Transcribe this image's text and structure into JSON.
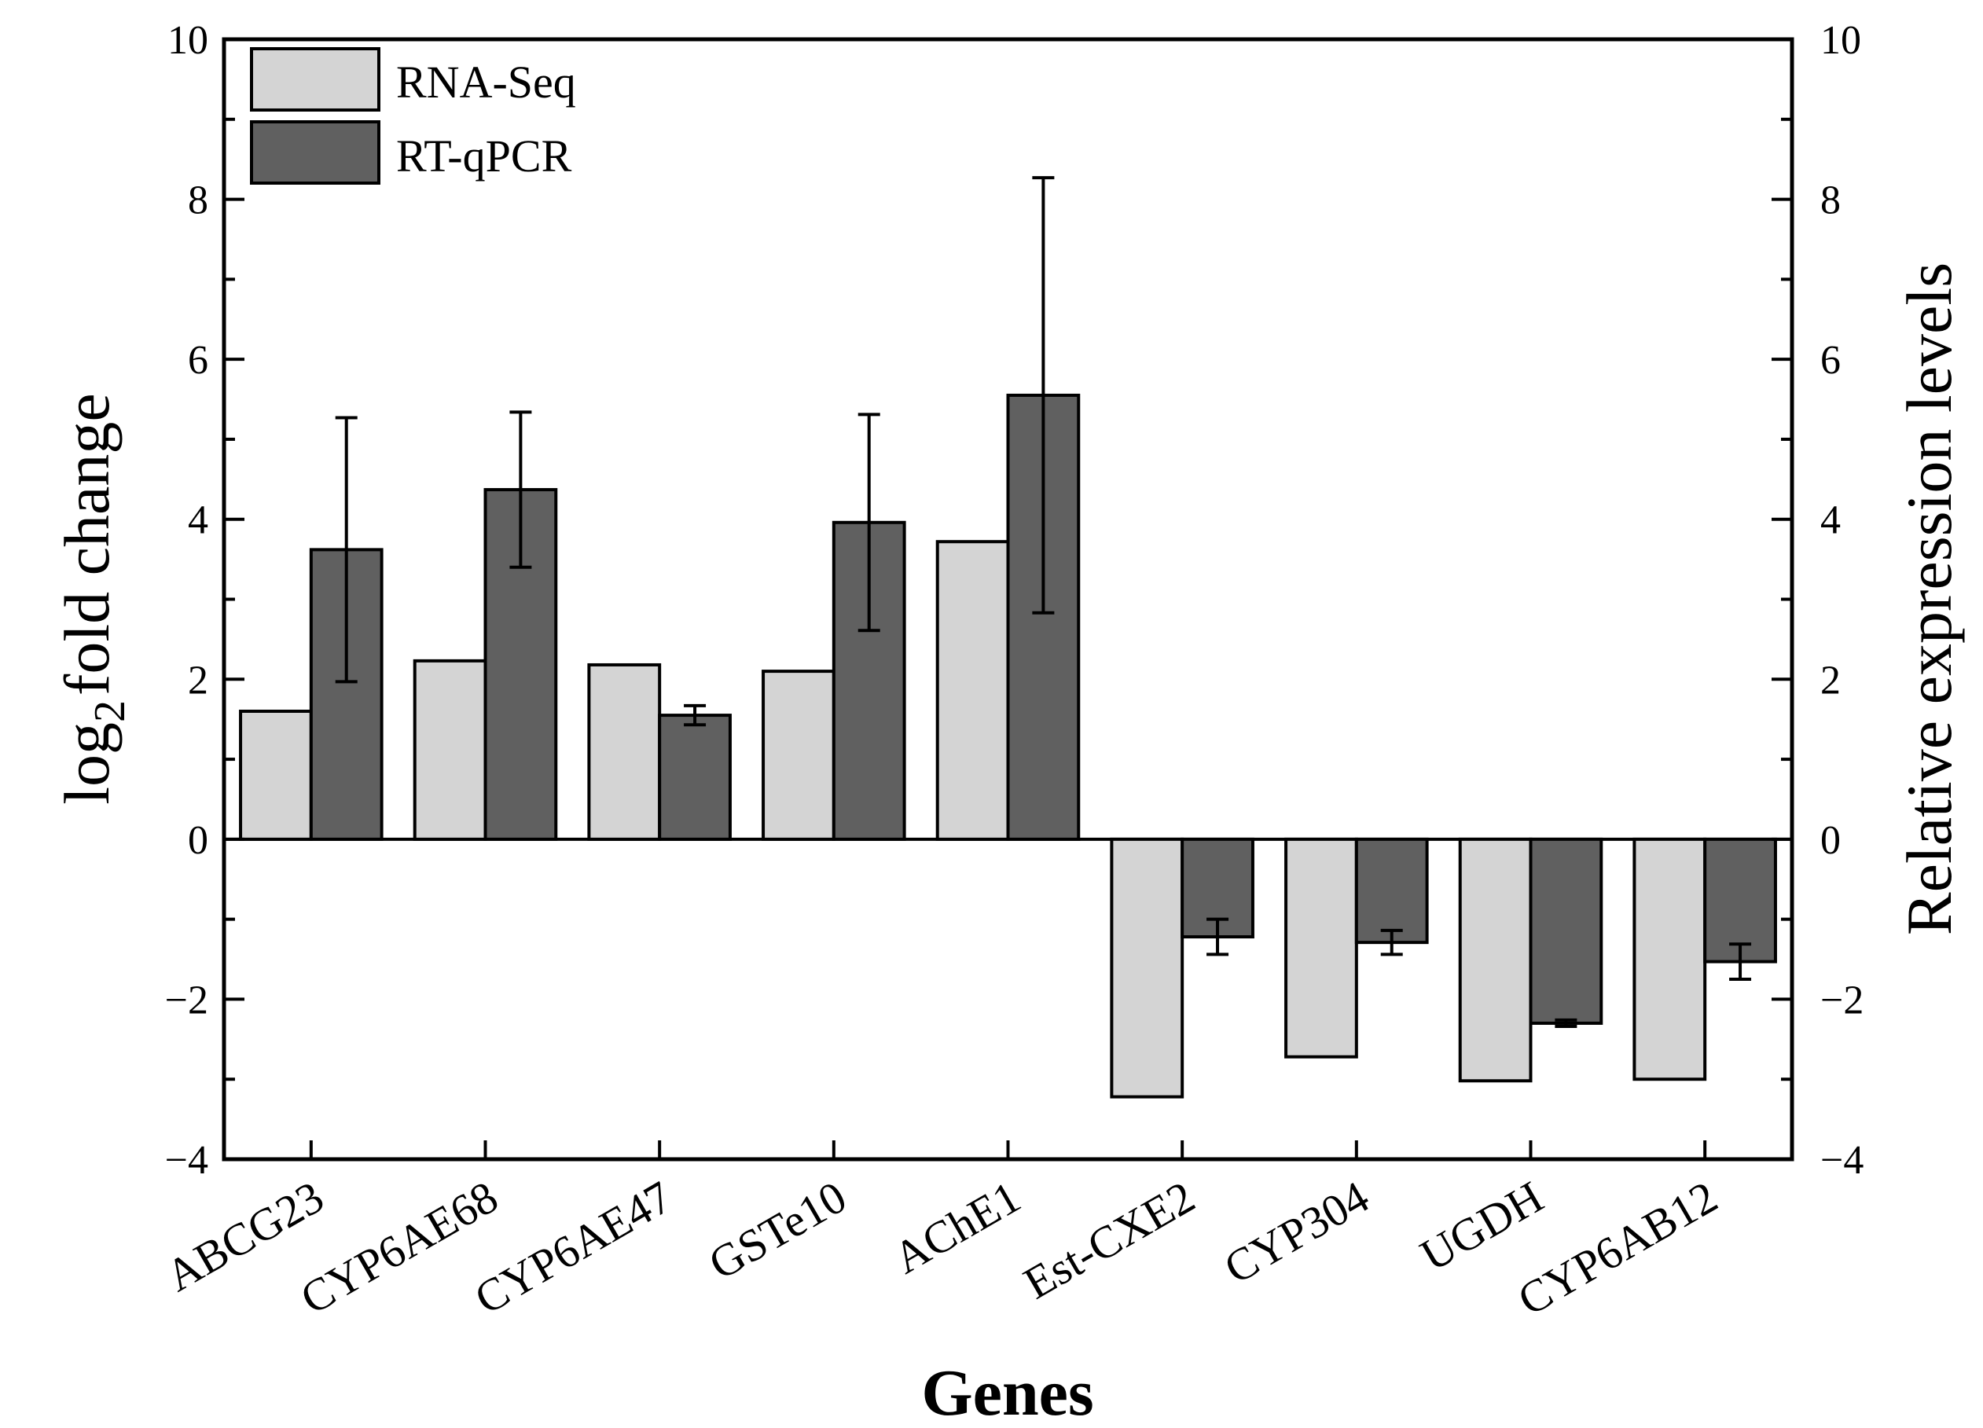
{
  "chart_data": {
    "type": "bar",
    "title": "",
    "xlabel": "Genes",
    "ylabel": "log2 fold change",
    "ylabel_parts": {
      "base": "log",
      "subscript": "2",
      "rest": "fold change"
    },
    "y2label": "Relative expression levels",
    "ylim": [
      -4,
      10
    ],
    "y2lim": [
      -4,
      10
    ],
    "yticks": [
      -4,
      -2,
      0,
      2,
      4,
      6,
      8,
      10
    ],
    "ytick_labels": [
      "−4",
      "−2",
      "0",
      "2",
      "4",
      "6",
      "8",
      "10"
    ],
    "y2ticks": [
      -4,
      -2,
      0,
      2,
      4,
      6,
      8,
      10
    ],
    "y2tick_labels": [
      "−4",
      "−2",
      "0",
      "2",
      "4",
      "6",
      "8",
      "10"
    ],
    "categories": [
      "ABCG23",
      "CYP6AE68",
      "CYP6AE47",
      "GSTe10",
      "AChE1",
      "Est-CXE2",
      "CYP304",
      "UGDH",
      "CYP6AB12"
    ],
    "series": [
      {
        "name": "RNA-Seq",
        "color": "#d4d4d4",
        "values": [
          1.6,
          2.23,
          2.18,
          2.1,
          3.72,
          -3.22,
          -2.72,
          -3.02,
          -3.0
        ]
      },
      {
        "name": "RT-qPCR",
        "color": "#606060",
        "values": [
          3.62,
          4.37,
          1.55,
          3.96,
          5.55,
          -1.22,
          -1.29,
          -2.3,
          -1.53
        ],
        "errors": [
          1.65,
          0.97,
          0.12,
          1.35,
          2.72,
          0.22,
          0.15,
          0.04,
          0.22
        ]
      }
    ],
    "legend": {
      "position": "top-left",
      "entries": [
        "RNA-Seq",
        "RT-qPCR"
      ]
    },
    "grid": false
  }
}
